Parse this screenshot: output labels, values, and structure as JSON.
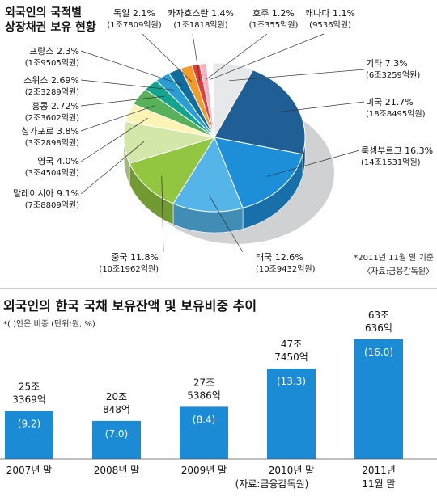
{
  "chart_data": [
    {
      "type": "pie",
      "title": "외국인의 국적별\n상장채권 보유 현황",
      "note": "*2011년 11월 말 기준",
      "source": "〈자료:금융감독원〉",
      "slices": [
        {
          "name": "기타",
          "pct": "7.3%",
          "amount": "(6조3259억원)",
          "value": 7.3,
          "color": "#e6e8ea"
        },
        {
          "name": "미국",
          "pct": "21.7%",
          "amount": "(18조8495억원)",
          "value": 21.7,
          "color": "#1f5f95"
        },
        {
          "name": "룩셈부르크",
          "pct": "16.3%",
          "amount": "(14조1531억원)",
          "value": 16.3,
          "color": "#1d8fd9"
        },
        {
          "name": "태국",
          "pct": "12.6%",
          "amount": "(10조9432억원)",
          "value": 12.6,
          "color": "#55b5e8"
        },
        {
          "name": "중국",
          "pct": "11.8%",
          "amount": "(10조1962억원)",
          "value": 11.8,
          "color": "#92c640"
        },
        {
          "name": "말레이시아",
          "pct": "9.1%",
          "amount": "(7조8809억원)",
          "value": 9.1,
          "color": "#d3e7a8"
        },
        {
          "name": "영국",
          "pct": "4.0%",
          "amount": "(3조4504억원)",
          "value": 4.0,
          "color": "#fbf4b4"
        },
        {
          "name": "싱가포르",
          "pct": "3.8%",
          "amount": "(3조2898억원)",
          "value": 3.8,
          "color": "#58b158"
        },
        {
          "name": "홍콩",
          "pct": "2.72%",
          "amount": "(2조3602억원)",
          "value": 2.72,
          "color": "#12a48d"
        },
        {
          "name": "스위스",
          "pct": "2.69%",
          "amount": "(2조3289억원)",
          "value": 2.69,
          "color": "#2a9ed4"
        },
        {
          "name": "프랑스",
          "pct": "2.3%",
          "amount": "(1조9505억원)",
          "value": 2.3,
          "color": "#0f6d9f"
        },
        {
          "name": "독일",
          "pct": "2.1%",
          "amount": "(1조7809억원)",
          "value": 2.1,
          "color": "#f39a27"
        },
        {
          "name": "카자흐스탄",
          "pct": "1.4%",
          "amount": "(1조1818억원)",
          "value": 1.4,
          "color": "#e83a39"
        },
        {
          "name": "호주",
          "pct": "1.2%",
          "amount": "(1조355억원)",
          "value": 1.2,
          "color": "#f5b3bf"
        },
        {
          "name": "캐나다",
          "pct": "1.1%",
          "amount": "(9536억원)",
          "value": 1.1,
          "color": "#ffffff"
        }
      ]
    },
    {
      "type": "bar",
      "title": "외국인의 한국 국채 보유잔액 및 보유비중 추이",
      "subtitle": "*(  )안은 비중   (단위:원, %)",
      "source": "(자료:금융감독원)",
      "categories": [
        "2007년 말",
        "2008년 말",
        "2009년 말",
        "2010년 말",
        "2011년\n11월 말"
      ],
      "values": [
        253369,
        200848,
        275386,
        477450,
        630636
      ],
      "value_labels": [
        "25조\n3369억",
        "20조\n848억",
        "27조\n5386억",
        "47조\n7450억",
        "63조\n636억"
      ],
      "ratio_labels": [
        "(9.2)",
        "(7.0)",
        "(8.4)",
        "(13.3)",
        "(16.0)"
      ],
      "ratios": [
        9.2,
        7.0,
        8.4,
        13.3,
        16.0
      ],
      "bar_color": "#1c8bd6",
      "ylim": [
        0,
        630636
      ]
    }
  ]
}
